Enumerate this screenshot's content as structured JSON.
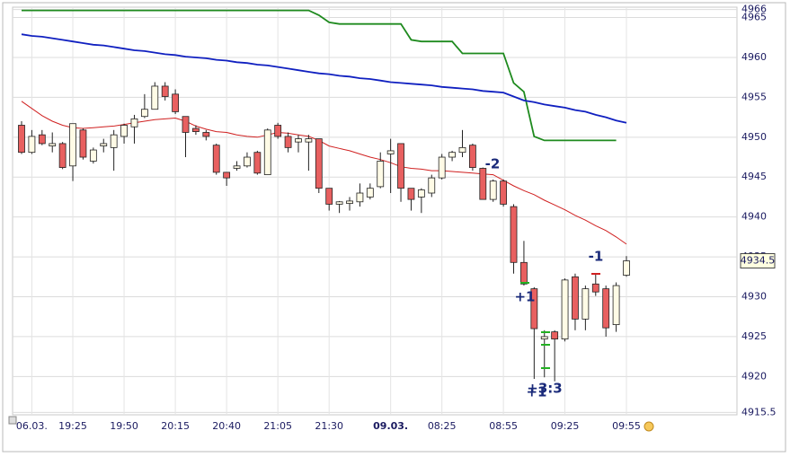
{
  "chart_data": {
    "type": "candlestick",
    "categories": [
      null,
      "06.03.",
      null,
      null,
      null,
      "19:25",
      null,
      null,
      null,
      null,
      "19:50",
      null,
      null,
      null,
      null,
      "20:15",
      null,
      null,
      null,
      null,
      "20:40",
      null,
      null,
      null,
      null,
      "21:05",
      null,
      null,
      null,
      null,
      "21:30",
      null,
      null,
      null,
      null,
      null,
      "09.03.",
      null,
      null,
      null,
      null,
      "08:25",
      null,
      null,
      null,
      null,
      null,
      "08:55",
      null,
      null,
      null,
      null,
      null,
      "09:25",
      null,
      null,
      null,
      null,
      null,
      "09:55"
    ],
    "open": [
      4951.5,
      4948.1,
      4950.3,
      4948.9,
      4949.2,
      4946.4,
      4950.9,
      4947.0,
      4948.9,
      4948.7,
      4950.1,
      4951.3,
      4952.6,
      4953.5,
      4956.4,
      4955.4,
      4952.6,
      4951.1,
      4950.6,
      4949.0,
      4945.6,
      4946.1,
      4946.4,
      4948.1,
      4945.3,
      4951.5,
      4950.1,
      4949.4,
      4949.4,
      4949.8,
      4943.6,
      4941.6,
      4941.7,
      4941.9,
      4942.5,
      4943.8,
      4947.9,
      4949.2,
      4943.6,
      4942.5,
      4943.0,
      4944.9,
      4947.5,
      4948.1,
      4949.0,
      4946.1,
      4942.2,
      4944.5,
      4941.3,
      4934.3,
      4931.0,
      4924.7,
      4925.6,
      4924.7,
      4932.5,
      4927.2,
      4931.6,
      4931.0,
      4926.5,
      4932.7
    ],
    "high": [
      4952.0,
      4950.9,
      4950.9,
      4950.6,
      4949.4,
      4951.7,
      4951.1,
      4948.7,
      4949.8,
      4950.9,
      4951.7,
      4952.8,
      4955.4,
      4956.9,
      4956.9,
      4956.0,
      4952.6,
      4951.5,
      4950.9,
      4949.2,
      4945.6,
      4947.0,
      4948.1,
      4948.3,
      4951.1,
      4951.8,
      4950.6,
      4950.3,
      4950.3,
      4949.8,
      4943.6,
      4942.0,
      4942.5,
      4944.2,
      4944.2,
      4948.1,
      4949.8,
      4949.2,
      4943.6,
      4943.6,
      4945.3,
      4947.9,
      4948.3,
      4950.9,
      4949.2,
      4946.2,
      4944.7,
      4944.7,
      4941.6,
      4937.0,
      4931.2,
      4925.8,
      4925.8,
      4932.3,
      4932.9,
      4931.4,
      4932.9,
      4931.4,
      4931.8,
      4935.1
    ],
    "low": [
      4947.9,
      4947.9,
      4949.0,
      4948.1,
      4946.0,
      4944.5,
      4947.2,
      4946.7,
      4948.1,
      4945.8,
      4949.2,
      4949.2,
      4952.4,
      4953.5,
      4954.6,
      4952.9,
      4947.5,
      4950.3,
      4949.6,
      4945.3,
      4943.9,
      4945.8,
      4946.2,
      4945.3,
      4945.3,
      4949.8,
      4948.1,
      4948.1,
      4945.8,
      4943.0,
      4940.8,
      4940.5,
      4940.8,
      4941.3,
      4942.2,
      4943.6,
      4943.0,
      4941.9,
      4940.8,
      4940.5,
      4942.5,
      4944.7,
      4947.0,
      4947.5,
      4945.8,
      4942.2,
      4941.9,
      4941.3,
      4932.9,
      4931.4,
      4919.7,
      4919.9,
      4919.4,
      4924.4,
      4925.8,
      4925.8,
      4930.1,
      4925.0,
      4925.6,
      4932.5
    ],
    "close": [
      4948.1,
      4950.1,
      4949.2,
      4949.2,
      4946.2,
      4951.7,
      4947.5,
      4948.4,
      4949.2,
      4950.3,
      4951.5,
      4952.3,
      4953.5,
      4956.4,
      4955.1,
      4953.2,
      4950.6,
      4950.7,
      4950.1,
      4945.6,
      4944.9,
      4946.4,
      4947.5,
      4945.5,
      4950.9,
      4950.1,
      4948.7,
      4949.8,
      4949.8,
      4943.6,
      4941.6,
      4941.9,
      4942.0,
      4943.0,
      4943.6,
      4947.0,
      4948.3,
      4943.6,
      4942.2,
      4943.4,
      4944.9,
      4947.5,
      4948.1,
      4948.7,
      4946.2,
      4942.2,
      4944.5,
      4941.6,
      4934.3,
      4931.6,
      4926.0,
      4925.0,
      4924.7,
      4932.1,
      4927.2,
      4931.0,
      4930.6,
      4926.1,
      4931.4,
      4934.5
    ],
    "up_color": "#fffbe6",
    "down_color": "#e86060",
    "lines": [
      {
        "color": "#1e8a1e",
        "values": [
          4965.9,
          4965.9,
          4965.9,
          4965.9,
          4965.9,
          4965.9,
          4965.9,
          4965.9,
          4965.9,
          4965.9,
          4965.9,
          4965.9,
          4965.9,
          4965.9,
          4965.9,
          4965.9,
          4965.9,
          4965.9,
          4965.9,
          4965.9,
          4965.9,
          4965.9,
          4965.9,
          4965.9,
          4965.9,
          4965.9,
          4965.9,
          4965.9,
          4965.9,
          4965.3,
          4964.4,
          4964.2,
          4964.2,
          4964.2,
          4964.2,
          4964.2,
          4964.2,
          4964.2,
          4962.2,
          4962.0,
          4962.0,
          4962.0,
          4962.0,
          4960.5,
          4960.5,
          4960.5,
          4960.5,
          4960.5,
          4956.8,
          4955.7,
          4950.1,
          4949.6,
          4949.6,
          4949.6,
          4949.6,
          4949.6,
          4949.6,
          4949.6,
          4949.6,
          null
        ]
      },
      {
        "color": "#1020c0",
        "values": [
          4962.9,
          4962.7,
          4962.6,
          4962.4,
          4962.2,
          4962.0,
          4961.8,
          4961.6,
          4961.5,
          4961.3,
          4961.1,
          4960.9,
          4960.8,
          4960.6,
          4960.4,
          4960.3,
          4960.1,
          4960.0,
          4959.9,
          4959.7,
          4959.6,
          4959.4,
          4959.3,
          4959.1,
          4959.0,
          4958.8,
          4958.6,
          4958.4,
          4958.2,
          4958.0,
          4957.9,
          4957.7,
          4957.6,
          4957.4,
          4957.3,
          4957.1,
          4956.9,
          4956.8,
          4956.7,
          4956.6,
          4956.5,
          4956.3,
          4956.2,
          4956.1,
          4956.0,
          4955.8,
          4955.7,
          4955.6,
          4955.1,
          4954.6,
          4954.4,
          4954.1,
          4953.9,
          4953.7,
          4953.4,
          4953.2,
          4952.8,
          4952.5,
          4952.1,
          4951.8
        ]
      },
      {
        "color": "#d02020",
        "values": [
          4954.5,
          4953.6,
          4952.7,
          4952.0,
          4951.5,
          4951.2,
          4951.1,
          4951.2,
          4951.3,
          4951.4,
          4951.6,
          4951.8,
          4952.0,
          4952.2,
          4952.3,
          4952.4,
          4952.0,
          4951.4,
          4951.0,
          4950.7,
          4950.6,
          4950.3,
          4950.1,
          4950.0,
          4950.3,
          4950.6,
          4950.5,
          4950.3,
          4950.1,
          4949.6,
          4948.9,
          4948.6,
          4948.3,
          4947.9,
          4947.5,
          4947.2,
          4946.8,
          4946.3,
          4946.1,
          4946.0,
          4945.8,
          4945.8,
          4945.7,
          4945.6,
          4945.5,
          4945.4,
          4945.3,
          4944.6,
          4943.9,
          4943.3,
          4942.8,
          4942.1,
          4941.5,
          4940.9,
          4940.2,
          4939.6,
          4938.9,
          4938.3,
          4937.5,
          4936.6
        ]
      }
    ],
    "ylim": [
      4915.2,
      4966.3
    ],
    "yticks": [
      4915.5,
      4920,
      4925,
      4930,
      4935,
      4940,
      4945,
      4950,
      4955,
      4960,
      4965,
      4966
    ],
    "grid": true,
    "annotations": [
      "-2",
      "+1",
      "+3:3",
      "+1",
      "-1"
    ]
  }
}
